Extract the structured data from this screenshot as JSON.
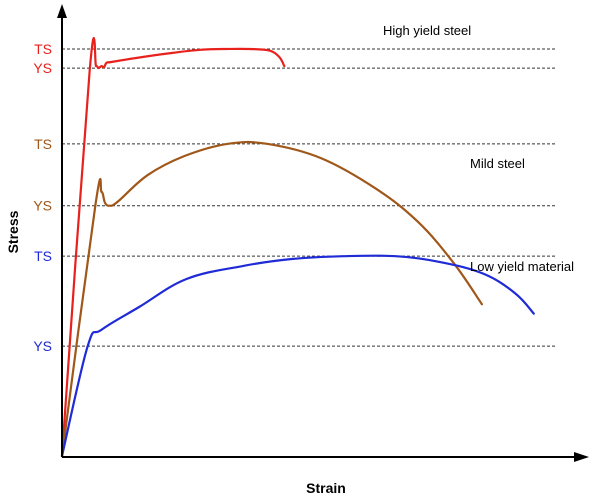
{
  "chart_data": {
    "type": "line",
    "title": "",
    "xlabel": "Strain",
    "ylabel": "Stress",
    "xlim": [
      0,
      100
    ],
    "ylim": [
      0,
      100
    ],
    "grid": false,
    "reference_lines": [
      {
        "label": "TS",
        "color": "#e8211d",
        "y": 100,
        "x_end": 100
      },
      {
        "label": "YS",
        "color": "#e8211d",
        "y": 95.3,
        "x_end": 100
      },
      {
        "label": "TS",
        "color": "#a0571a",
        "y": 76.7,
        "x_end": 100
      },
      {
        "label": "YS",
        "color": "#a0571a",
        "y": 61.5,
        "x_end": 100
      },
      {
        "label": "TS",
        "color": "#1f2bd6",
        "y": 49.1,
        "x_end": 100
      },
      {
        "label": "YS",
        "color": "#1f2bd6",
        "y": 27.0,
        "x_end": 100
      }
    ],
    "series": [
      {
        "name": "High yield steel",
        "color": "#e8211d",
        "x": [
          0,
          5.6,
          6.9,
          7.4,
          8.0,
          8.5,
          9.0,
          10,
          15,
          22,
          28,
          33,
          38,
          42,
          44,
          45
        ],
        "y": [
          0,
          94.8,
          95.8,
          95.3,
          95.8,
          95.5,
          96.6,
          96.8,
          97.8,
          99.0,
          99.8,
          100,
          100,
          99.6,
          98.0,
          95.8
        ]
      },
      {
        "name": "Mild steel",
        "color": "#a0571a",
        "x": [
          0,
          6.8,
          8.0,
          8.7,
          9.6,
          11.3,
          17.3,
          24.8,
          33.6,
          41.5,
          52.4,
          63.4,
          72.0,
          79.3,
          85.0
        ],
        "y": [
          0,
          62.0,
          64.9,
          62.2,
          61.5,
          62.5,
          69.0,
          73.7,
          76.7,
          76.7,
          73.2,
          65.8,
          57.6,
          47.4,
          37.3
        ]
      },
      {
        "name": "Low yield material",
        "color": "#1f2bd6",
        "x": [
          0,
          5.2,
          8.0,
          15.6,
          25.2,
          36.7,
          46.5,
          57.0,
          67.6,
          76.8,
          85.5,
          91.8,
          95.5
        ],
        "y": [
          0,
          27.0,
          31.0,
          36.6,
          43.5,
          46.7,
          48.4,
          49.1,
          49.1,
          47.6,
          44.7,
          39.9,
          35.0
        ]
      }
    ],
    "curve_labels": [
      "High yield steel",
      "Mild steel",
      "Low yield material"
    ]
  }
}
